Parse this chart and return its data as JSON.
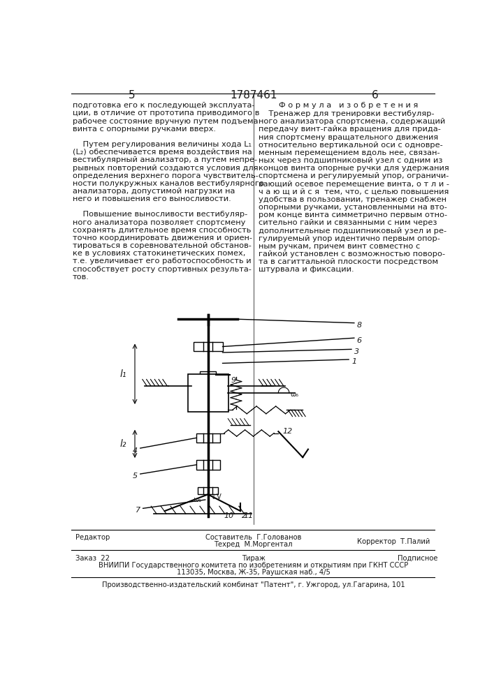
{
  "page_width": 7.07,
  "page_height": 10.0,
  "bg_color": "#ffffff",
  "text_color": "#1a1a1a",
  "header_page_left": "5",
  "header_title": "1787461",
  "header_page_right": "6",
  "left_col_text": [
    "подготовка его к последующей эксплуата-",
    "ции, в отличие от прототипа приводимого в",
    "рабочее состояние вручную путем подъема",
    "винта с опорными ручками вверх.",
    "",
    "    Путем регулирования величины хода L₁",
    "(L₂) обеспечивается время воздействия на",
    "вестибулярный анализатор, а путем непре-",
    "рывных повторений создаются условия для",
    "определения верхнего порога чувствитель-",
    "ности полукружных каналов вестибулярного",
    "анализатора, допустимой нагрузки на",
    "него и повышения его выносливости.",
    "",
    "    Повышение выносливости вестибуляр-",
    "ного анализатора позволяет спортсмену",
    "сохранять длительное время способность",
    "точно координировать движения и ориен-",
    "тироваться в соревновательной обстанов-",
    "ке в условиях статокинетических помех,",
    "т.е. увеличивает его работоспособность и",
    "способствует росту спортивных результа-",
    "тов."
  ],
  "right_col_title": "Ф о р м у л а   и з о б р е т е н и я",
  "right_col_text": [
    "    Тренажер для тренировки вестибуляр-",
    "ного анализатора спортсмена, содержащий",
    "передачу винт-гайка вращения для прида-",
    "ния спортсмену вращательного движения",
    "относительно вертикальной оси с одновре-",
    "менным перемещением вдоль нее, связан-",
    "ных через подшипниковый узел с одним из",
    "концов винта опорные ручки для удержания",
    "спортсмена и регулируемый упор, ограничи-",
    "вающий осевое перемещение винта, о т л и -",
    "ч а ю щ и й с я  тем, что, с целью повышения",
    "удобства в пользовании, тренажер снабжен",
    "опорными ручками, установленными на вто-",
    "ром конце винта симметрично первым отно-",
    "сительно гайки и связанными с ним через",
    "дополнительные подшипниковый узел и ре-",
    "гулируемый упор идентично первым опор-",
    "ным ручкам, причем винт совместно с",
    "гайкой установлен с возможностью поворо-",
    "та в сагиттальной плоскости посредством",
    "штурвала и фиксации."
  ],
  "footer_line1_left": "Редактор",
  "footer_line1_center1": "Составитель  Г.Голованов",
  "footer_line1_center2": "Техред  М.Моргентал",
  "footer_line1_right": "Корректор  Т.Палий",
  "footer_line2_left": "Заказ  22",
  "footer_line2_center": "Тираж",
  "footer_line2_right": "Подписное",
  "footer_line3": "ВНИИПИ Государственного комитета по изобретениям и открытиям при ГКНТ СССР",
  "footer_line4": "113035, Москва, Ж-35, Раушская наб., 4/5",
  "footer_line5": "Производственно-издательский комбинат \"Патент\", г. Ужгород, ул.Гагарина, 101"
}
